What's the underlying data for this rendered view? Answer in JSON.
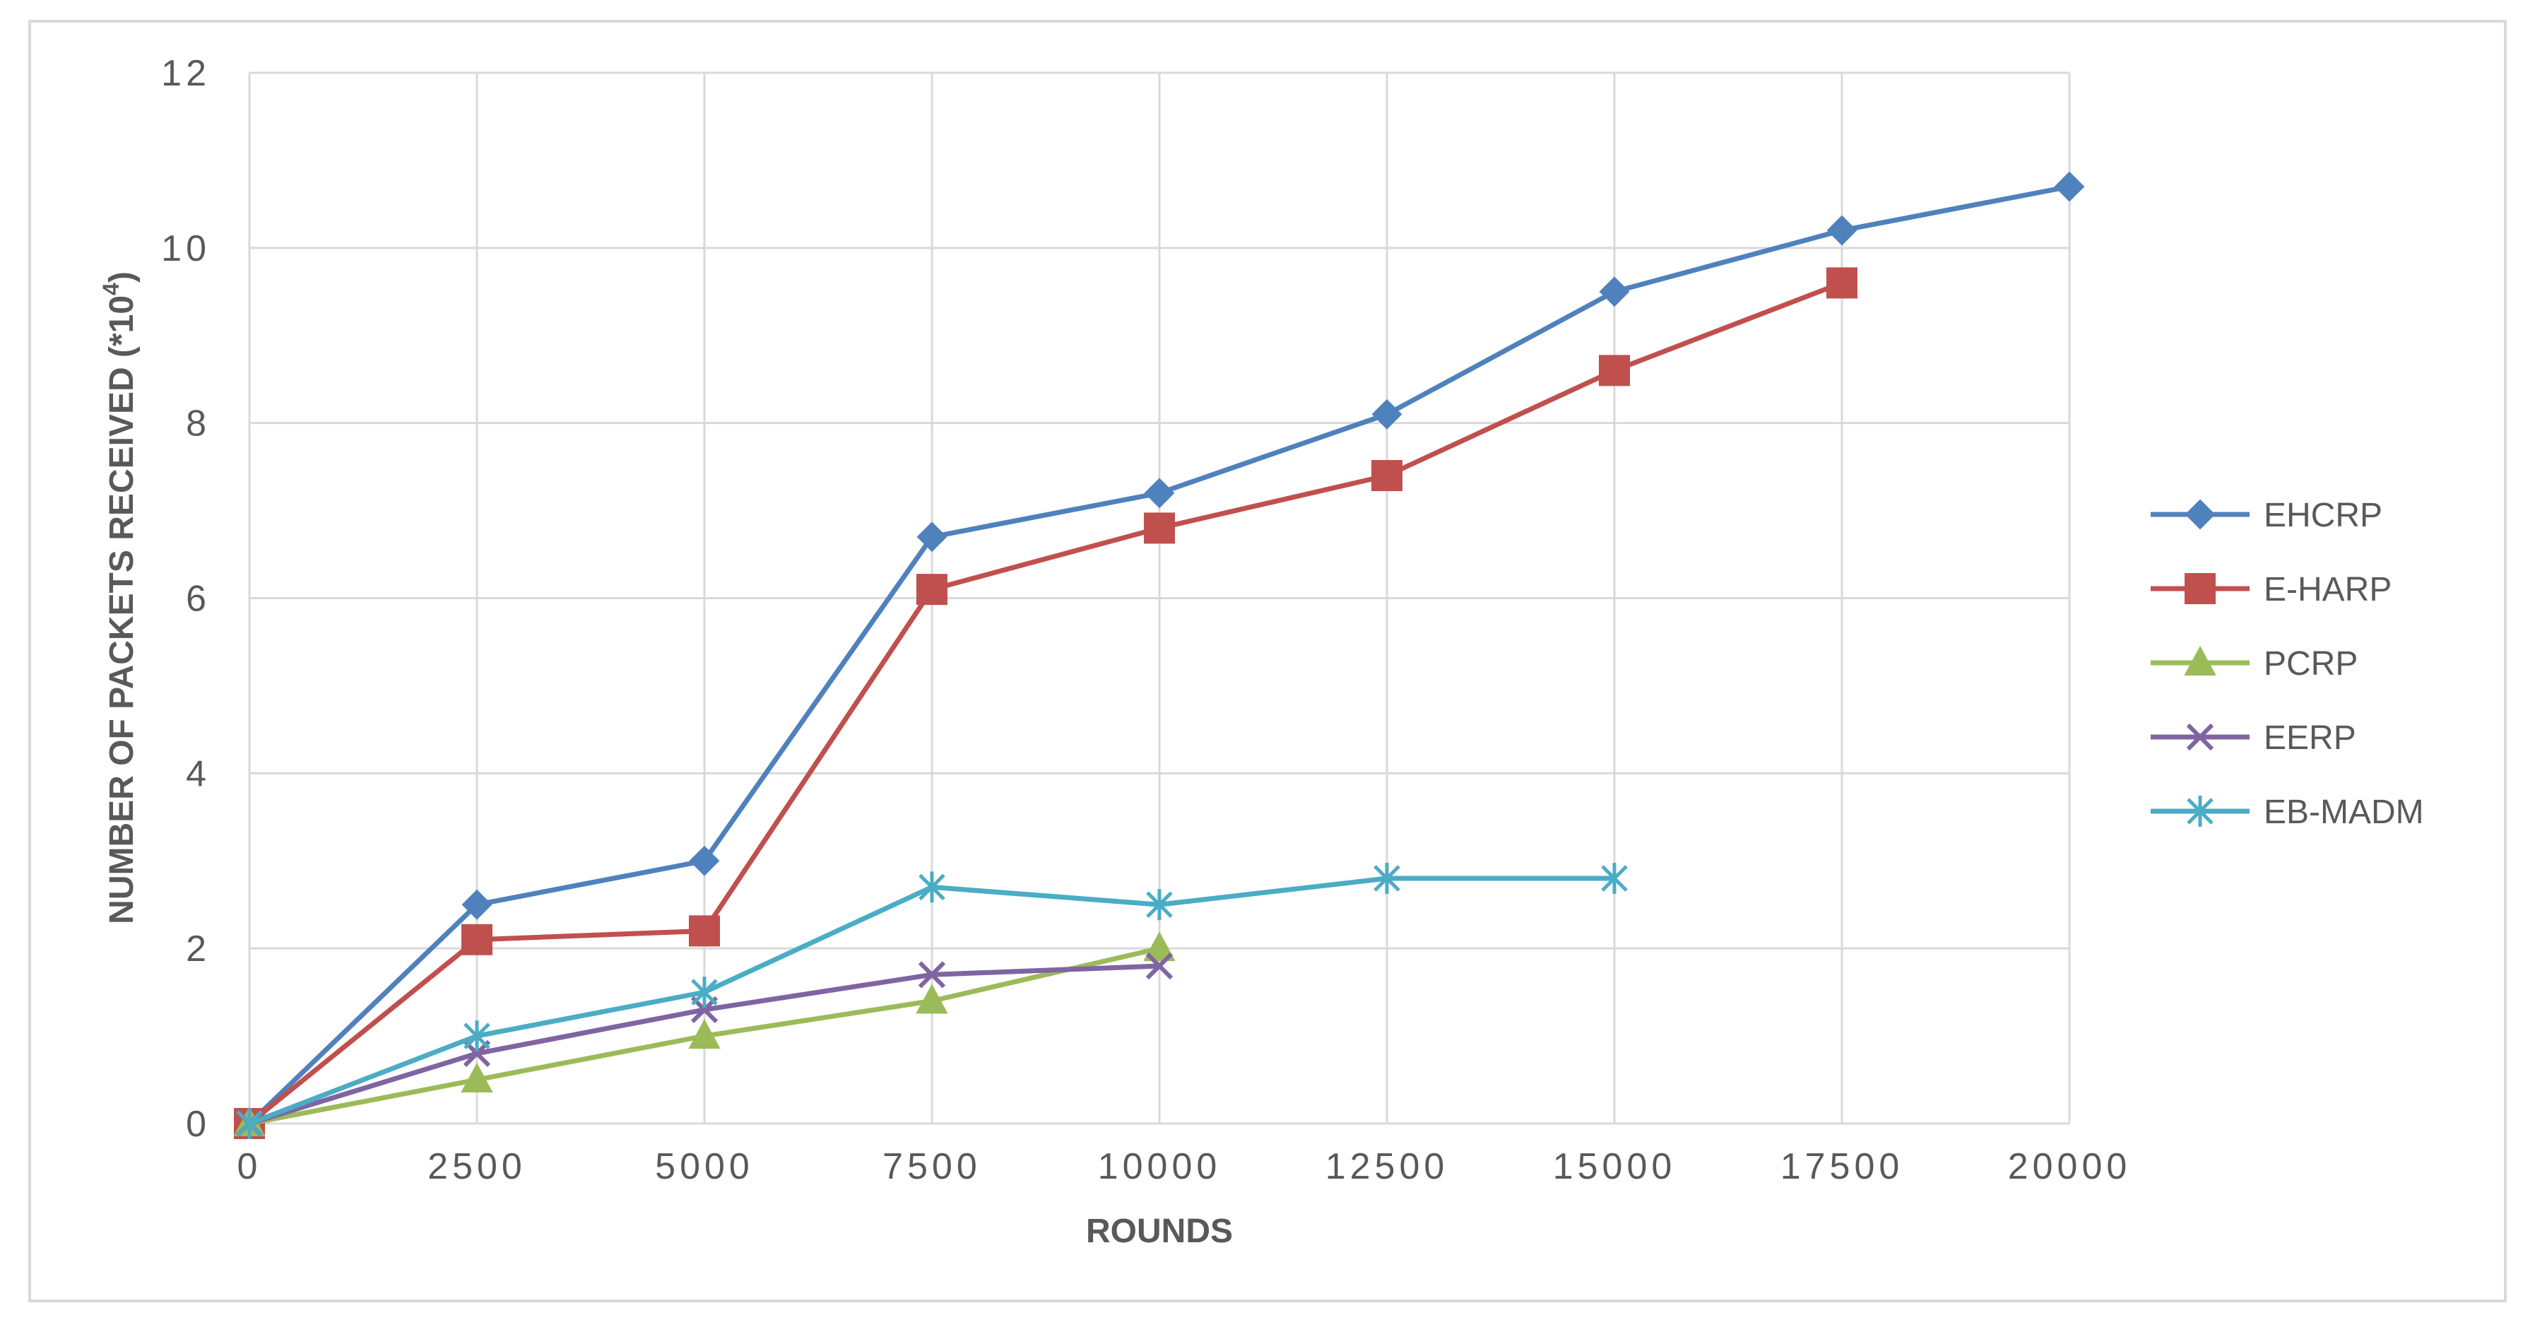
{
  "chart_data": {
    "type": "line",
    "xlabel": "ROUNDS",
    "ylabel": "NUMBER OF PACKETS RECEIVED (*10",
    "ylabel_superscript": "4",
    "ylabel_suffix": ")",
    "xlim": [
      0,
      20000
    ],
    "ylim": [
      0,
      12
    ],
    "x_ticks": [
      "0",
      "2500",
      "5000",
      "7500",
      "10000",
      "12500",
      "15000",
      "17500",
      "20000"
    ],
    "y_ticks": [
      "0",
      "2",
      "4",
      "6",
      "8",
      "10",
      "12"
    ],
    "grid": true,
    "legend_position": "right",
    "series": [
      {
        "name": "EHCRP",
        "color": "#4f81bd",
        "marker": "diamond",
        "x": [
          0,
          2500,
          5000,
          7500,
          10000,
          12500,
          15000,
          17500,
          20000
        ],
        "y": [
          0,
          2.5,
          3.0,
          6.7,
          7.2,
          8.1,
          9.5,
          10.2,
          10.7
        ]
      },
      {
        "name": "E-HARP",
        "color": "#c0504d",
        "marker": "square",
        "x": [
          0,
          2500,
          5000,
          7500,
          10000,
          12500,
          15000,
          17500
        ],
        "y": [
          0,
          2.1,
          2.2,
          6.1,
          6.8,
          7.4,
          8.6,
          9.6
        ]
      },
      {
        "name": "PCRP",
        "color": "#9bbb59",
        "marker": "triangle",
        "x": [
          0,
          2500,
          5000,
          7500,
          10000
        ],
        "y": [
          0,
          0.5,
          1.0,
          1.4,
          2.0
        ]
      },
      {
        "name": "EERP",
        "color": "#8064a2",
        "marker": "x",
        "x": [
          0,
          2500,
          5000,
          7500,
          10000
        ],
        "y": [
          0,
          0.8,
          1.3,
          1.7,
          1.8
        ]
      },
      {
        "name": "EB-MADM",
        "color": "#4bacc6",
        "marker": "asterisk",
        "x": [
          0,
          2500,
          5000,
          7500,
          10000,
          12500,
          15000
        ],
        "y": [
          0,
          1.0,
          1.5,
          2.7,
          2.5,
          2.8,
          2.8
        ]
      }
    ]
  }
}
